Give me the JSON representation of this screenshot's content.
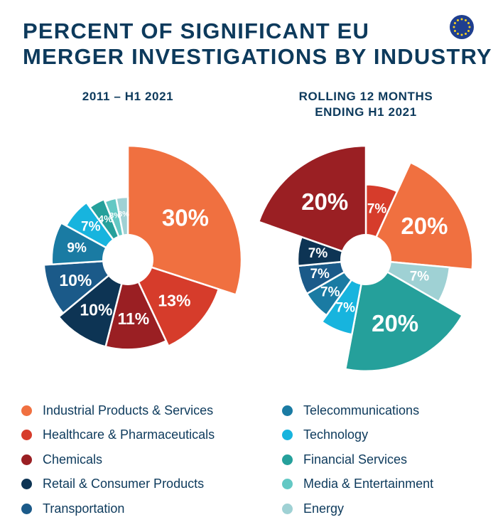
{
  "title": {
    "line1": "PERCENT OF SIGNIFICANT EU",
    "line2": "MERGER INVESTIGATIONS BY INDUSTRY"
  },
  "colors": {
    "Industrial Products & Services": "#f07040",
    "Healthcare & Pharmaceuticals": "#d63c2b",
    "Chemicals": "#9a1f23",
    "Retail & Consumer Products": "#0d3454",
    "Transportation": "#1b5a89",
    "Telecommunications": "#1a7ba3",
    "Technology": "#17b4de",
    "Financial Services": "#25a09b",
    "Media & Entertainment": "#63c8c4",
    "Energy": "#9fd1d4"
  },
  "legend": {
    "left": [
      "Industrial Products & Services",
      "Healthcare & Pharmaceuticals",
      "Chemicals",
      "Retail & Consumer Products",
      "Transportation"
    ],
    "right": [
      "Telecommunications",
      "Technology",
      "Financial Services",
      "Media & Entertainment",
      "Energy"
    ]
  },
  "chart_data": [
    {
      "type": "pie",
      "title": "2011 – H1 2021",
      "subtitle_lines": [
        "2011 – H1 2021"
      ],
      "slices": [
        {
          "category": "Industrial Products & Services",
          "value": 30,
          "label": "30%",
          "radius": 1.0
        },
        {
          "category": "Healthcare & Pharmaceuticals",
          "value": 13,
          "label": "13%",
          "radius": 0.84
        },
        {
          "category": "Chemicals",
          "value": 11,
          "label": "11%",
          "radius": 0.79
        },
        {
          "category": "Retail & Consumer Products",
          "value": 10,
          "label": "10%",
          "radius": 0.79
        },
        {
          "category": "Transportation",
          "value": 10,
          "label": "10%",
          "radius": 0.74
        },
        {
          "category": "Telecommunications",
          "value": 9,
          "label": "9%",
          "radius": 0.67
        },
        {
          "category": "Technology",
          "value": 7,
          "label": "7%",
          "radius": 0.62
        },
        {
          "category": "Financial Services",
          "value": 4,
          "label": "4%",
          "radius": 0.57
        },
        {
          "category": "Media & Entertainment",
          "value": 3,
          "label": "3%",
          "radius": 0.55
        },
        {
          "category": "Energy",
          "value": 3,
          "label": "3%",
          "radius": 0.55
        }
      ]
    },
    {
      "type": "pie",
      "title": "ROLLING 12 MONTHS ENDING H1 2021",
      "subtitle_lines": [
        "ROLLING 12 MONTHS",
        "ENDING H1 2021"
      ],
      "slices": [
        {
          "category": "Healthcare & Pharmaceuticals",
          "value": 7,
          "label": "7%",
          "radius": 0.66
        },
        {
          "category": "Industrial Products & Services",
          "value": 20,
          "label": "20%",
          "radius": 0.94
        },
        {
          "category": "Energy",
          "value": 7,
          "label": "7%",
          "radius": 0.74
        },
        {
          "category": "Financial Services",
          "value": 20,
          "label": "20%",
          "radius": 0.98
        },
        {
          "category": "Technology",
          "value": 7,
          "label": "7%",
          "radius": 0.67
        },
        {
          "category": "Telecommunications",
          "value": 7,
          "label": "7%",
          "radius": 0.6
        },
        {
          "category": "Transportation",
          "value": 7,
          "label": "7%",
          "radius": 0.6
        },
        {
          "category": "Retail & Consumer Products",
          "value": 7,
          "label": "7%",
          "radius": 0.6
        },
        {
          "category": "Chemicals",
          "value": 20,
          "label": "20%",
          "radius": 1.0
        }
      ]
    }
  ]
}
